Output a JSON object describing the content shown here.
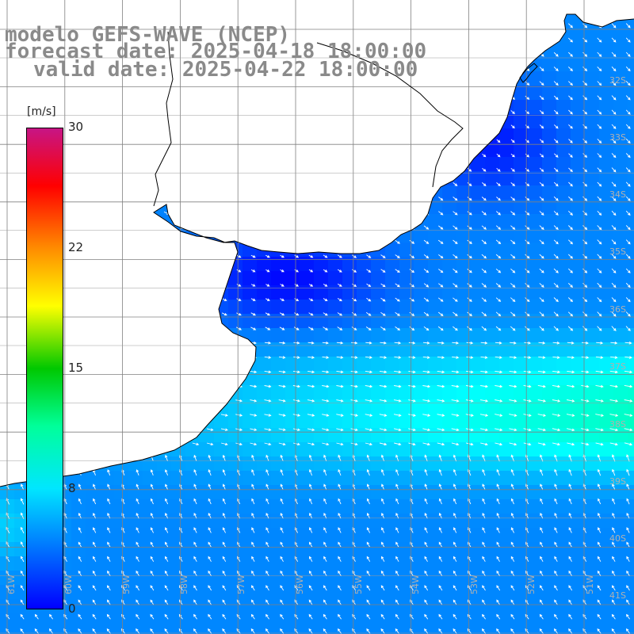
{
  "title": {
    "model": "modelo GEFS-WAVE (NCEP)",
    "forecast": "forecast date: 2025-04-18 18:00:00",
    "valid": "valid date: 2025-04-22 18:00:00"
  },
  "colorbar": {
    "unit": "[m/s]",
    "ticks": [
      "30",
      "22",
      "15",
      "8",
      "0"
    ],
    "tick_values": [
      30,
      22,
      15,
      8,
      0
    ],
    "range": [
      0,
      30
    ],
    "colors": [
      "#0000ff",
      "#0078ff",
      "#00e6ff",
      "#00ff9a",
      "#00c800",
      "#ffff00",
      "#ff8c00",
      "#ff0000",
      "#c71585"
    ]
  },
  "map_labels": {
    "lat": [
      "32S",
      "33S",
      "34S",
      "35S",
      "36S",
      "37S",
      "38S",
      "39S",
      "40S",
      "41S"
    ],
    "lon": [
      "61W",
      "60W",
      "59W",
      "58W",
      "57W",
      "56W",
      "55W",
      "54W",
      "53W",
      "52W",
      "51W"
    ]
  },
  "colors": {
    "land": "#ffffff",
    "coast": "#000000",
    "grid": "#808080",
    "title": "#8a8a8a",
    "arrow": "#ffffff"
  }
}
